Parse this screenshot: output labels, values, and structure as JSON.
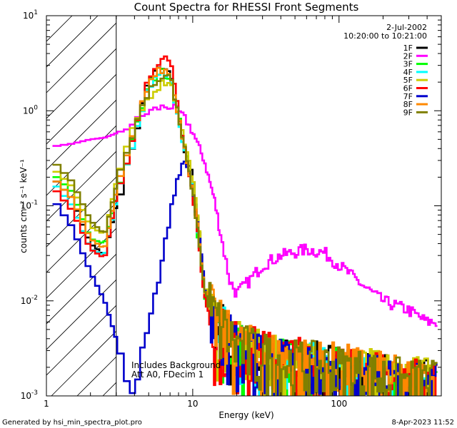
{
  "chart_data": {
    "type": "line",
    "title": "Count Spectra for RHESSI Front Segments",
    "xlabel": "Energy (keV)",
    "ylabel": "counts cm⁻² s⁻¹ keV⁻¹",
    "xscale": "log",
    "yscale": "log",
    "xlim": [
      1,
      500
    ],
    "ylim": [
      0.001,
      10
    ],
    "x_ticks": [
      {
        "value": 1,
        "label": "1"
      },
      {
        "value": 10,
        "label": "10"
      },
      {
        "value": 100,
        "label": "100"
      }
    ],
    "y_ticks": [
      {
        "value": 0.001,
        "mant": "10",
        "exp": "-3"
      },
      {
        "value": 0.01,
        "mant": "10",
        "exp": "-2"
      },
      {
        "value": 0.1,
        "mant": "10",
        "exp": "-1"
      },
      {
        "value": 1,
        "mant": "10",
        "exp": "0"
      },
      {
        "value": 10,
        "mant": "10",
        "exp": "1"
      }
    ],
    "hatched_region": {
      "x_min": 1,
      "x_max": 3
    },
    "date": "2-Jul-2002",
    "time_range": "10:20:00 to 10:21:00",
    "annotations": [
      "Includes Background",
      "Att A0, FDecim 1"
    ],
    "legend_position": "top-right",
    "series": [
      {
        "name": "1F",
        "color": "#000000",
        "points": [
          [
            1.1,
            0.2
          ],
          [
            1.5,
            0.12
          ],
          [
            2,
            0.04
          ],
          [
            2.5,
            0.03
          ],
          [
            3,
            0.1
          ],
          [
            4,
            0.5
          ],
          [
            5,
            2.2
          ],
          [
            6,
            2.8
          ],
          [
            7,
            2.5
          ],
          [
            8,
            0.8
          ],
          [
            9,
            0.35
          ],
          [
            10,
            0.2
          ],
          [
            11,
            0.06
          ],
          [
            12,
            0.012
          ],
          [
            14,
            0.006
          ],
          [
            20,
            0.003
          ],
          [
            40,
            0.002
          ],
          [
            80,
            0.0018
          ],
          [
            150,
            0.0015
          ],
          [
            300,
            0.0012
          ]
        ]
      },
      {
        "name": "2F",
        "color": "#ff00ff",
        "points": [
          [
            1.1,
            0.42
          ],
          [
            1.5,
            0.45
          ],
          [
            2,
            0.5
          ],
          [
            2.5,
            0.52
          ],
          [
            3,
            0.58
          ],
          [
            4,
            0.75
          ],
          [
            5,
            0.98
          ],
          [
            6,
            1.08
          ],
          [
            7,
            1.12
          ],
          [
            8,
            1.0
          ],
          [
            9,
            0.8
          ],
          [
            10,
            0.6
          ],
          [
            12,
            0.3
          ],
          [
            14,
            0.12
          ],
          [
            16,
            0.04
          ],
          [
            18,
            0.016
          ],
          [
            20,
            0.012
          ],
          [
            25,
            0.017
          ],
          [
            30,
            0.024
          ],
          [
            40,
            0.03
          ],
          [
            60,
            0.035
          ],
          [
            80,
            0.032
          ],
          [
            100,
            0.024
          ],
          [
            150,
            0.014
          ],
          [
            200,
            0.01
          ],
          [
            300,
            0.008
          ],
          [
            400,
            0.006
          ]
        ]
      },
      {
        "name": "3F",
        "color": "#00ff00",
        "points": [
          [
            1.1,
            0.22
          ],
          [
            1.5,
            0.14
          ],
          [
            2,
            0.045
          ],
          [
            2.5,
            0.04
          ],
          [
            3,
            0.12
          ],
          [
            4,
            0.55
          ],
          [
            5,
            1.9
          ],
          [
            6,
            2.6
          ],
          [
            7,
            2.3
          ],
          [
            8,
            0.9
          ],
          [
            9,
            0.35
          ],
          [
            10,
            0.15
          ],
          [
            11,
            0.04
          ],
          [
            12,
            0.012
          ],
          [
            14,
            0.005
          ],
          [
            20,
            0.003
          ],
          [
            40,
            0.002
          ],
          [
            80,
            0.0017
          ],
          [
            150,
            0.0014
          ],
          [
            300,
            0.0011
          ]
        ]
      },
      {
        "name": "4F",
        "color": "#00ffff",
        "points": [
          [
            1.1,
            0.18
          ],
          [
            1.5,
            0.1
          ],
          [
            2,
            0.035
          ],
          [
            2.5,
            0.03
          ],
          [
            3,
            0.11
          ],
          [
            4,
            0.5
          ],
          [
            5,
            1.8
          ],
          [
            6,
            2.4
          ],
          [
            7,
            2.2
          ],
          [
            8,
            0.85
          ],
          [
            9,
            0.32
          ],
          [
            10,
            0.14
          ],
          [
            11,
            0.045
          ],
          [
            12,
            0.013
          ],
          [
            14,
            0.006
          ],
          [
            20,
            0.003
          ],
          [
            40,
            0.002
          ],
          [
            80,
            0.0017
          ],
          [
            150,
            0.0014
          ],
          [
            300,
            0.0011
          ]
        ]
      },
      {
        "name": "5F",
        "color": "#cccc00",
        "points": [
          [
            1.1,
            0.25
          ],
          [
            1.5,
            0.16
          ],
          [
            2,
            0.06
          ],
          [
            2.5,
            0.05
          ],
          [
            3,
            0.18
          ],
          [
            4,
            0.7
          ],
          [
            5,
            1.4
          ],
          [
            6,
            1.9
          ],
          [
            7,
            2.1
          ],
          [
            8,
            0.9
          ],
          [
            9,
            0.4
          ],
          [
            10,
            0.2
          ],
          [
            11,
            0.06
          ],
          [
            12,
            0.015
          ],
          [
            14,
            0.006
          ],
          [
            20,
            0.003
          ],
          [
            40,
            0.002
          ],
          [
            80,
            0.0018
          ],
          [
            150,
            0.0016
          ],
          [
            300,
            0.0013
          ]
        ]
      },
      {
        "name": "6F",
        "color": "#ff0000",
        "points": [
          [
            1.1,
            0.16
          ],
          [
            1.5,
            0.09
          ],
          [
            2,
            0.035
          ],
          [
            2.5,
            0.028
          ],
          [
            3,
            0.12
          ],
          [
            4,
            0.6
          ],
          [
            5,
            2.4
          ],
          [
            6,
            3.2
          ],
          [
            7,
            3.8
          ],
          [
            8,
            1.0
          ],
          [
            9,
            0.35
          ],
          [
            10,
            0.13
          ],
          [
            11,
            0.04
          ],
          [
            12,
            0.011
          ],
          [
            14,
            0.005
          ],
          [
            20,
            0.003
          ],
          [
            40,
            0.0022
          ],
          [
            80,
            0.0019
          ],
          [
            150,
            0.0015
          ],
          [
            300,
            0.0012
          ]
        ]
      },
      {
        "name": "7F",
        "color": "#0000cc",
        "points": [
          [
            1.1,
            0.12
          ],
          [
            1.5,
            0.06
          ],
          [
            2,
            0.02
          ],
          [
            2.5,
            0.01
          ],
          [
            3,
            0.004
          ],
          [
            3.5,
            0.0015
          ],
          [
            4,
            0.001
          ],
          [
            4.5,
            0.003
          ],
          [
            5,
            0.006
          ],
          [
            6,
            0.02
          ],
          [
            7,
            0.08
          ],
          [
            8,
            0.22
          ],
          [
            9,
            0.3
          ],
          [
            10,
            0.15
          ],
          [
            11,
            0.05
          ],
          [
            12,
            0.015
          ],
          [
            14,
            0.006
          ],
          [
            20,
            0.003
          ],
          [
            40,
            0.002
          ],
          [
            80,
            0.0016
          ],
          [
            150,
            0.0014
          ],
          [
            300,
            0.0011
          ]
        ]
      },
      {
        "name": "8F",
        "color": "#ff8800",
        "points": [
          [
            1.1,
            0.2
          ],
          [
            1.5,
            0.12
          ],
          [
            2,
            0.045
          ],
          [
            2.5,
            0.035
          ],
          [
            3,
            0.14
          ],
          [
            4,
            0.6
          ],
          [
            5,
            2.0
          ],
          [
            6,
            2.7
          ],
          [
            7,
            2.5
          ],
          [
            8,
            0.9
          ],
          [
            9,
            0.35
          ],
          [
            10,
            0.15
          ],
          [
            11,
            0.05
          ],
          [
            12,
            0.014
          ],
          [
            14,
            0.006
          ],
          [
            20,
            0.003
          ],
          [
            40,
            0.0022
          ],
          [
            80,
            0.0019
          ],
          [
            150,
            0.0016
          ],
          [
            300,
            0.0012
          ]
        ]
      },
      {
        "name": "9F",
        "color": "#808000",
        "points": [
          [
            1.1,
            0.3
          ],
          [
            1.5,
            0.18
          ],
          [
            2,
            0.07
          ],
          [
            2.5,
            0.05
          ],
          [
            3,
            0.16
          ],
          [
            4,
            0.65
          ],
          [
            5,
            1.7
          ],
          [
            6,
            2.2
          ],
          [
            7,
            2.4
          ],
          [
            8,
            0.85
          ],
          [
            9,
            0.33
          ],
          [
            10,
            0.14
          ],
          [
            11,
            0.045
          ],
          [
            12,
            0.013
          ],
          [
            14,
            0.006
          ],
          [
            20,
            0.003
          ],
          [
            40,
            0.002
          ],
          [
            80,
            0.0018
          ],
          [
            150,
            0.0015
          ],
          [
            300,
            0.0012
          ]
        ]
      }
    ]
  },
  "footer": {
    "generator": "Generated by hsi_min_spectra_plot.pro",
    "timestamp": "8-Apr-2023 11:52"
  }
}
